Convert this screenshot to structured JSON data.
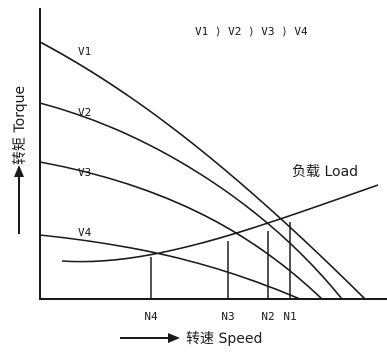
{
  "chart_data": {
    "type": "line",
    "title": "",
    "annotation": "V1 ⟩ V2 ⟩ V3 ⟩ V4",
    "xlabel": "转速 Speed",
    "ylabel": "转矩 Torque",
    "x_ticks": [
      "N4",
      "N3",
      "N2",
      "N1"
    ],
    "grid": false,
    "series": [
      {
        "name": "V1"
      },
      {
        "name": "V2"
      },
      {
        "name": "V3"
      },
      {
        "name": "V4"
      },
      {
        "name": "负载 Load"
      }
    ]
  }
}
